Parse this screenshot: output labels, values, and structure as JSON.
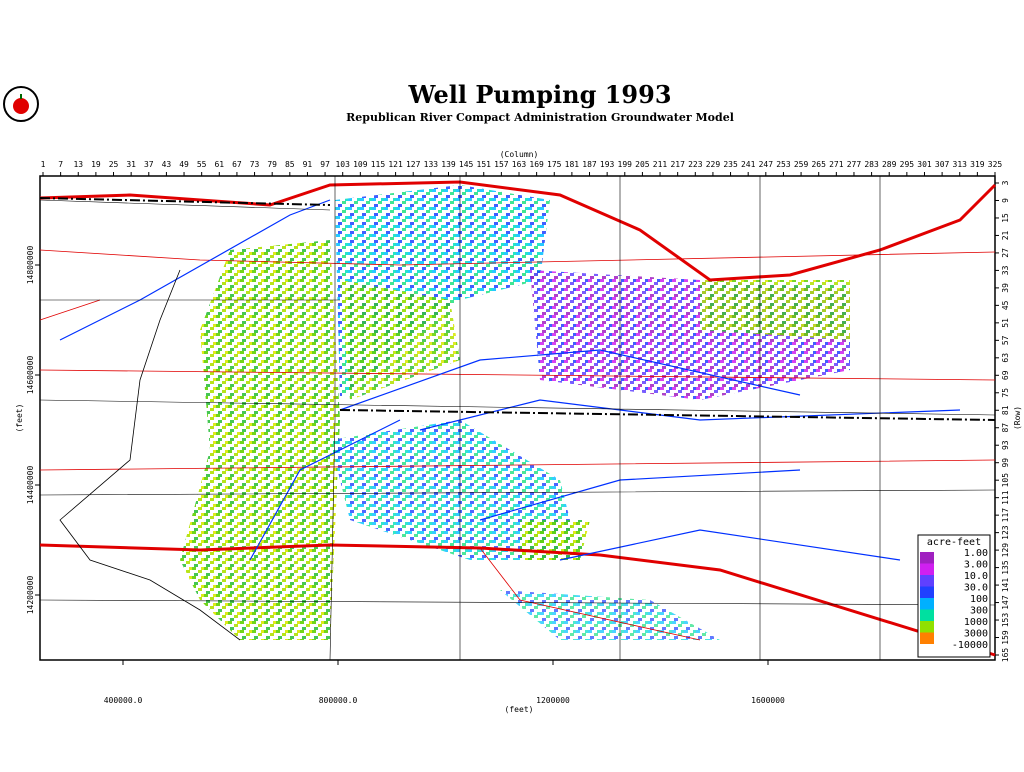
{
  "header": {
    "title": "Well Pumping 1993",
    "subtitle": "Republican River Compact Administration Groundwater Model"
  },
  "axes": {
    "column_label": "(Column)",
    "row_label": "(Row)",
    "x_label": "(feet)",
    "y_label": "(feet)",
    "columns": [
      1,
      7,
      13,
      19,
      25,
      31,
      37,
      43,
      49,
      55,
      61,
      67,
      73,
      79,
      85,
      91,
      97,
      103,
      109,
      115,
      121,
      127,
      133,
      139,
      145,
      151,
      157,
      163,
      169,
      175,
      181,
      187,
      193,
      199,
      205,
      211,
      217,
      223,
      229,
      235,
      241,
      247,
      253,
      259,
      265,
      271,
      277,
      283,
      289,
      295,
      301,
      307,
      313,
      319,
      325
    ],
    "rows": [
      3,
      9,
      15,
      21,
      27,
      33,
      39,
      45,
      51,
      57,
      63,
      69,
      75,
      81,
      87,
      93,
      99,
      105,
      111,
      117,
      123,
      129,
      135,
      141,
      147,
      153,
      159,
      165
    ],
    "xticks": [
      {
        "value": 400000,
        "label": "400000.0"
      },
      {
        "value": 800000,
        "label": "800000.0"
      },
      1200000,
      1600000
    ],
    "yticks": [
      14800000,
      14600000,
      14400000,
      14200000
    ]
  },
  "legend": {
    "title": "acre-feet",
    "items": [
      {
        "label": "1.00",
        "color": "#a020c0"
      },
      {
        "label": "3.00",
        "color": "#d020f0"
      },
      {
        "label": "10.0",
        "color": "#6040ff"
      },
      {
        "label": "30.0",
        "color": "#2040ff"
      },
      {
        "label": "100",
        "color": "#00b0ff"
      },
      {
        "label": "300",
        "color": "#00e0a0"
      },
      {
        "label": "1000",
        "color": "#90e000"
      },
      {
        "label": "3000",
        "color": "#ff8000"
      },
      {
        "label": "-10000",
        "color": "#ffffff"
      }
    ]
  }
}
